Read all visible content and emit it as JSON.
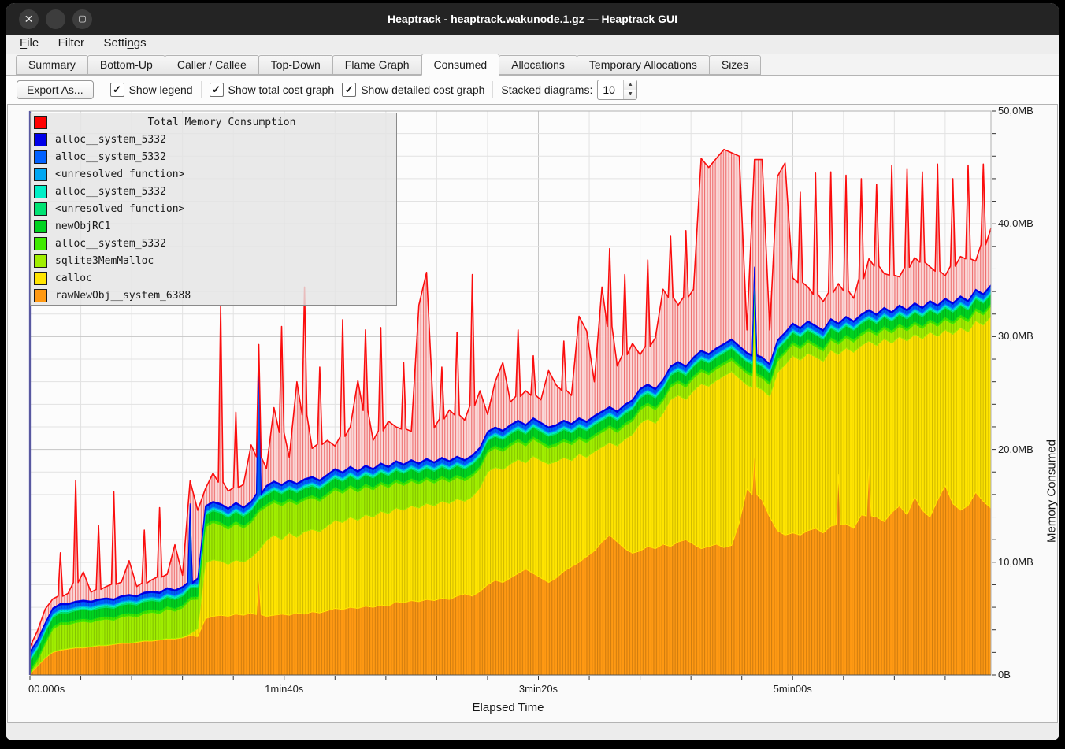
{
  "window": {
    "title": "Heaptrack - heaptrack.wakunode.1.gz — Heaptrack GUI",
    "controls": [
      {
        "name": "close",
        "glyph": "✕"
      },
      {
        "name": "minimize",
        "glyph": "—"
      },
      {
        "name": "maximize",
        "glyph": "▢"
      }
    ]
  },
  "menu": {
    "items": [
      {
        "label": "File",
        "mnemonic": 0
      },
      {
        "label": "Filter",
        "mnemonic": -1
      },
      {
        "label": "Settings",
        "mnemonic": 5
      }
    ]
  },
  "tabs": [
    {
      "label": "Summary",
      "active": false
    },
    {
      "label": "Bottom-Up",
      "active": false
    },
    {
      "label": "Caller / Callee",
      "active": false
    },
    {
      "label": "Top-Down",
      "active": false
    },
    {
      "label": "Flame Graph",
      "active": false
    },
    {
      "label": "Consumed",
      "active": true
    },
    {
      "label": "Allocations",
      "active": false
    },
    {
      "label": "Temporary Allocations",
      "active": false
    },
    {
      "label": "Sizes",
      "active": false
    }
  ],
  "toolbar": {
    "export_label": "Export As...",
    "checkboxes": [
      {
        "label": "Show legend",
        "checked": true
      },
      {
        "label": "Show total cost graph",
        "checked": true
      },
      {
        "label": "Show detailed cost graph",
        "checked": true
      }
    ],
    "stacked_label": "Stacked diagrams:",
    "stacked_value": "10"
  },
  "chart_data": {
    "type": "area",
    "title": "Total Memory Consumption",
    "xlabel": "Elapsed Time",
    "ylabel": "Memory Consumed",
    "x_axis": {
      "tick_labels": [
        "00.000s",
        "1min40s",
        "3min20s",
        "5min00s"
      ],
      "tick_seconds": [
        0,
        100,
        200,
        300
      ],
      "minor_step_seconds": 20,
      "max_seconds": 378
    },
    "y_axis": {
      "tick_labels": [
        "0B",
        "10,0MB",
        "20,0MB",
        "30,0MB",
        "40,0MB",
        "50,0MB"
      ],
      "tick_mb": [
        0,
        10,
        20,
        30,
        40,
        50
      ],
      "minor_step_mb": 2,
      "max_mb": 50
    },
    "sample_step_seconds": 3,
    "legend": [
      {
        "name": "Total Memory Consumption",
        "color": "#ff0000"
      },
      {
        "name": "alloc__system_5332",
        "color": "#0000e8"
      },
      {
        "name": "alloc__system_5332",
        "color": "#0061ff"
      },
      {
        "name": "<unresolved function>",
        "color": "#00a7f2"
      },
      {
        "name": "alloc__system_5332",
        "color": "#00eec6"
      },
      {
        "name": "<unresolved function>",
        "color": "#00e273"
      },
      {
        "name": "newObjRC1",
        "color": "#00d320"
      },
      {
        "name": "alloc__system_5332",
        "color": "#40ea00"
      },
      {
        "name": "sqlite3MemMalloc",
        "color": "#a0ee00"
      },
      {
        "name": "calloc",
        "color": "#ffe400"
      },
      {
        "name": "rawNewObj__system_6388",
        "color": "#ff9912"
      }
    ],
    "stack_top_mb": [
      0.3,
      2.0,
      4.5,
      5.8,
      6.0,
      5.9,
      6.1,
      6.3,
      6.0,
      6.2,
      6.4,
      6.1,
      6.5,
      6.7,
      6.4,
      6.8,
      7.0,
      6.7,
      7.2,
      7.4,
      7.8,
      15.2,
      8.6,
      15.0,
      15.4,
      15.2,
      14.8,
      15.3,
      14.9,
      15.4,
      28.5,
      16.8,
      17.2,
      16.9,
      17.3,
      17.0,
      17.4,
      17.6,
      17.3,
      17.8,
      18.3,
      18.0,
      18.5,
      18.1,
      18.6,
      18.3,
      18.8,
      18.5,
      19.0,
      18.7,
      19.1,
      18.8,
      19.2,
      18.9,
      19.3,
      19.0,
      19.4,
      19.1,
      19.5,
      20.2,
      21.6,
      22.0,
      21.7,
      22.2,
      22.6,
      22.2,
      22.8,
      22.4,
      22.0,
      22.2,
      22.6,
      22.3,
      22.8,
      22.5,
      23.0,
      23.4,
      23.8,
      23.4,
      24.0,
      24.4,
      25.4,
      25.8,
      25.4,
      26.2,
      27.4,
      27.8,
      27.4,
      28.2,
      28.8,
      28.5,
      29.0,
      29.4,
      29.8,
      29.2,
      28.6,
      36.2,
      28.2,
      27.6,
      29.7,
      30.4,
      31.2,
      30.8,
      31.4,
      31.0,
      30.6,
      31.6,
      31.2,
      31.8,
      31.4,
      32.0,
      32.4,
      32.0,
      32.6,
      32.2,
      32.8,
      32.4,
      33.0,
      32.6,
      33.2,
      32.8,
      33.4,
      33.0,
      33.6,
      33.2,
      34.2,
      33.8,
      34.6
    ],
    "total_extra_mb": [
      0.4,
      0.8,
      1.2,
      0.8,
      4.5,
      0.9,
      10.7,
      2.5,
      0.8,
      6.5,
      1.0,
      9.5,
      1.2,
      3.0,
      0.8,
      5.5,
      1.0,
      7.5,
      1.2,
      4.0,
      1.0,
      2.0,
      6.0,
      1.5,
      2.5,
      17.5,
      1.5,
      8.0,
      2.0,
      5.0,
      0.8,
      1.5,
      6.5,
      14.0,
      2.0,
      9.0,
      17.0,
      2.5,
      10.0,
      3.0,
      2.0,
      13.5,
      3.5,
      8.0,
      12.0,
      2.5,
      12.0,
      4.0,
      3.0,
      9.0,
      2.5,
      14.0,
      16.5,
      3.0,
      8.0,
      4.5,
      11.0,
      3.5,
      16.0,
      5.0,
      1.5,
      4.0,
      6.0,
      2.0,
      8.0,
      3.0,
      5.5,
      2.0,
      5.0,
      3.5,
      7.0,
      2.5,
      9.0,
      8.0,
      3.0,
      11.0,
      14.0,
      4.0,
      11.5,
      5.0,
      3.0,
      11.0,
      4.5,
      8.0,
      11.5,
      5.0,
      12.0,
      6.0,
      17.0,
      16.5,
      16.8,
      17.2,
      16.5,
      16.8,
      2.0,
      9.5,
      17.5,
      3.0,
      14.5,
      15.0,
      4.0,
      12.0,
      3.0,
      13.5,
      2.5,
      13.0,
      3.5,
      12.5,
      2.0,
      12.0,
      4.5,
      11.5,
      3.0,
      13.0,
      2.5,
      12.5,
      4.0,
      12.0,
      3.0,
      12.5,
      2.0,
      11.0,
      3.5,
      12.0,
      2.5,
      11.5,
      5.0
    ],
    "series_bottom_up": [
      {
        "name": "rawNewObj__system_6388",
        "color": "#ff9912",
        "values": [
          0.1,
          0.8,
          1.5,
          2.0,
          2.2,
          2.3,
          2.4,
          2.4,
          2.5,
          2.6,
          2.6,
          2.7,
          2.8,
          2.8,
          2.9,
          3.0,
          3.0,
          3.1,
          3.2,
          3.2,
          3.3,
          3.5,
          3.4,
          5.0,
          5.2,
          5.3,
          5.2,
          5.4,
          5.3,
          5.5,
          9.0,
          5.2,
          5.3,
          5.4,
          5.3,
          5.5,
          5.4,
          5.6,
          5.5,
          5.7,
          5.9,
          5.8,
          6.0,
          5.9,
          6.1,
          6.0,
          6.2,
          6.1,
          6.5,
          6.4,
          6.6,
          6.5,
          6.7,
          6.6,
          6.8,
          6.7,
          7.0,
          7.2,
          7.0,
          7.4,
          8.0,
          8.4,
          8.2,
          8.6,
          9.0,
          9.4,
          9.0,
          8.6,
          8.2,
          8.6,
          9.2,
          9.6,
          10.0,
          10.5,
          11.0,
          11.8,
          12.4,
          11.8,
          11.2,
          10.8,
          11.0,
          11.4,
          11.2,
          11.6,
          11.4,
          11.8,
          12.0,
          11.6,
          11.2,
          11.4,
          11.6,
          11.3,
          11.5,
          13.5,
          16.5,
          20.0,
          15.5,
          14.0,
          12.8,
          12.4,
          12.6,
          12.4,
          12.8,
          13.0,
          12.6,
          13.2,
          17.8,
          13.4,
          13.0,
          14.2,
          18.5,
          14.0,
          13.6,
          14.4,
          15.0,
          14.2,
          15.8,
          14.6,
          14.0,
          15.5,
          16.8,
          15.2,
          14.6,
          15.0,
          16.2,
          15.4,
          14.8
        ]
      },
      {
        "name": "calloc",
        "color": "#ffe400",
        "values": "residual"
      },
      {
        "name": "sqlite3MemMalloc",
        "color": "#a0ee00",
        "values": [
          0.05,
          0.4,
          1.2,
          2.0,
          2.2,
          2.1,
          2.2,
          2.3,
          2.1,
          2.2,
          2.3,
          2.1,
          2.3,
          2.4,
          2.2,
          2.4,
          2.5,
          2.3,
          2.6,
          2.4,
          2.6,
          3.0,
          2.6,
          3.2,
          3.3,
          3.2,
          3.1,
          3.2,
          3.0,
          3.1,
          3.4,
          3.0,
          2.9,
          3.0,
          2.8,
          2.9,
          2.8,
          2.8,
          2.7,
          2.7,
          2.7,
          2.6,
          2.6,
          2.5,
          2.5,
          2.4,
          2.4,
          2.3,
          2.3,
          2.2,
          2.2,
          2.1,
          2.1,
          2.0,
          2.0,
          1.9,
          1.9,
          1.8,
          1.8,
          1.7,
          1.7,
          1.7,
          1.6,
          1.6,
          1.6,
          1.5,
          1.5,
          1.5,
          1.4,
          1.4,
          1.4,
          1.4,
          1.3,
          1.3,
          1.3,
          1.3,
          1.3,
          1.2,
          1.2,
          1.2,
          1.2,
          1.2,
          1.2,
          1.1,
          1.1,
          1.1,
          1.1,
          1.1,
          1.1,
          1.0,
          1.0,
          1.0,
          1.0,
          1.0,
          1.0,
          1.0,
          1.0,
          1.0,
          1.0,
          1.0,
          1.0,
          1.0,
          1.0,
          0.9,
          0.9,
          0.9,
          0.9,
          0.9,
          0.9,
          0.9,
          0.9,
          0.9,
          0.9,
          0.9,
          0.9,
          0.9,
          0.9,
          0.9,
          0.9,
          0.9,
          0.9,
          0.9,
          0.9,
          0.9,
          0.9,
          0.9,
          0.9
        ]
      },
      {
        "name": "alloc__system_5332",
        "color": "#40ea00",
        "const": 0.25
      },
      {
        "name": "newObjRC1",
        "color": "#00d320",
        "const": 0.8
      },
      {
        "name": "<unresolved function>",
        "color": "#00e273",
        "const": 0.12
      },
      {
        "name": "alloc__system_5332",
        "color": "#00eec6",
        "const": 0.15
      },
      {
        "name": "<unresolved function>",
        "color": "#00a7f2",
        "const": 0.1
      },
      {
        "name": "alloc__system_5332",
        "color": "#0061ff",
        "const": 0.35,
        "spikes": {
          "21": 7.0,
          "30": 12.5
        }
      },
      {
        "name": "alloc__system_5332",
        "color": "#0000e8",
        "const": 0.12
      }
    ],
    "total_color": "#fb0d0d"
  }
}
